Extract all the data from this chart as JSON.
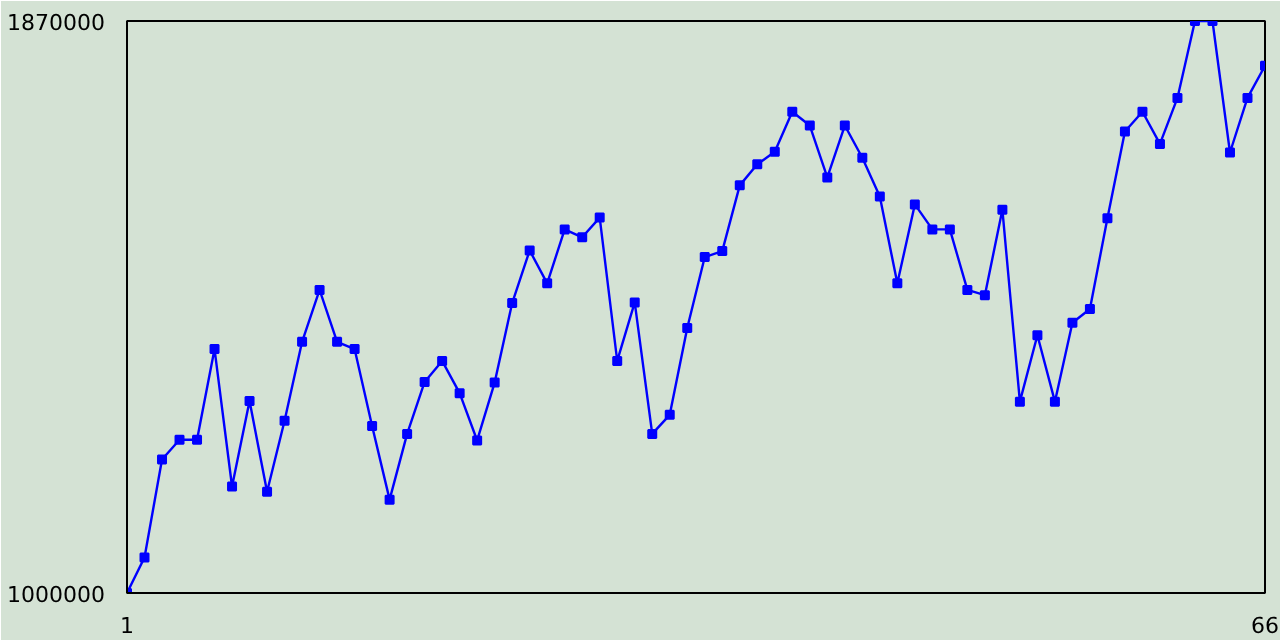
{
  "chart_data": {
    "type": "line",
    "x": [
      1,
      2,
      3,
      4,
      5,
      6,
      7,
      8,
      9,
      10,
      11,
      12,
      13,
      14,
      15,
      16,
      17,
      18,
      19,
      20,
      21,
      22,
      23,
      24,
      25,
      26,
      27,
      28,
      29,
      30,
      31,
      32,
      33,
      34,
      35,
      36,
      37,
      38,
      39,
      40,
      41,
      42,
      43,
      44,
      45,
      46,
      47,
      48,
      49,
      50,
      51,
      52,
      53,
      54,
      55,
      56,
      57,
      58,
      59,
      60,
      61,
      62,
      63,
      64,
      65,
      66
    ],
    "series": [
      {
        "color": "#0000ff",
        "values": [
          1000000,
          1054000,
          1203000,
          1233000,
          1233000,
          1371000,
          1162000,
          1292000,
          1154000,
          1262000,
          1382000,
          1461000,
          1382000,
          1371000,
          1254000,
          1142000,
          1242000,
          1321000,
          1353000,
          1304000,
          1232000,
          1320000,
          1441000,
          1521000,
          1471000,
          1553000,
          1541000,
          1571000,
          1353000,
          1442000,
          1242000,
          1271000,
          1403000,
          1511000,
          1520000,
          1620000,
          1652000,
          1671000,
          1732000,
          1711000,
          1632000,
          1711000,
          1662000,
          1603000,
          1471000,
          1591000,
          1553000,
          1553000,
          1461000,
          1453000,
          1583000,
          1291000,
          1392000,
          1291000,
          1411000,
          1432000,
          1570000,
          1702000,
          1732000,
          1683000,
          1753000,
          1870000,
          1870000,
          1670000,
          1753000,
          1802000
        ]
      }
    ],
    "xlim": [
      1,
      66
    ],
    "ylim": [
      1000000,
      1870000
    ],
    "xticks": [
      1,
      66
    ],
    "yticks": [
      1000000,
      1870000
    ],
    "marker": "square"
  }
}
